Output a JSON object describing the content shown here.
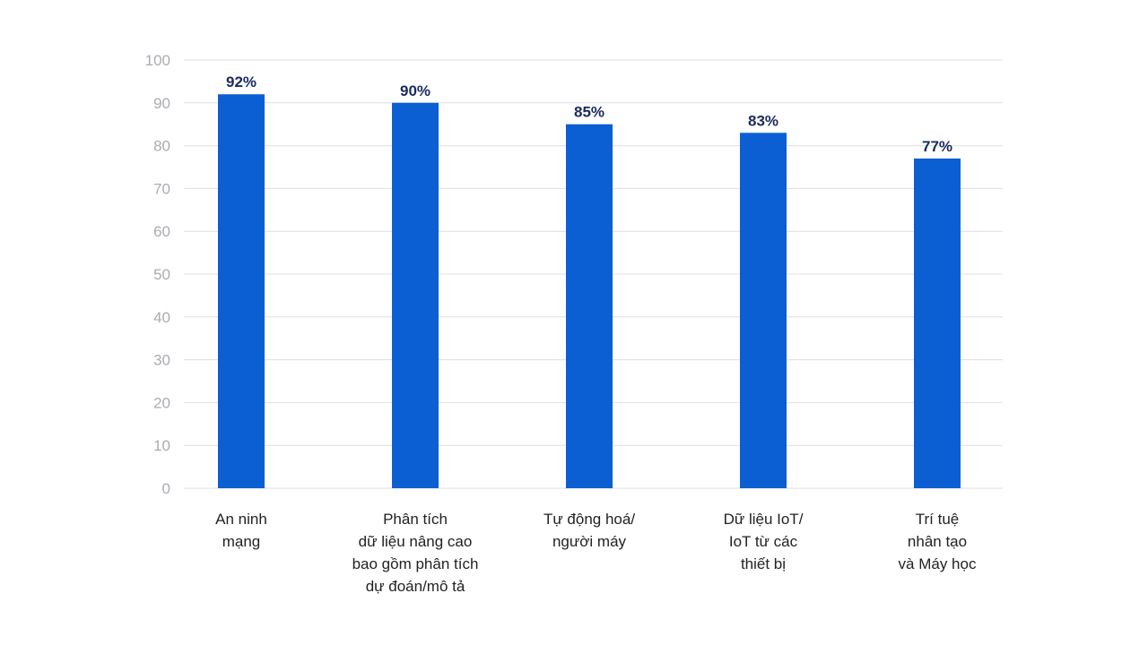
{
  "chart_data": {
    "type": "bar",
    "categories": [
      [
        "An ninh",
        "mạng"
      ],
      [
        "Phân tích",
        "dữ liệu nâng cao",
        "bao gồm phân tích",
        "dự đoán/mô tả"
      ],
      [
        "Tự động hoá/",
        "người máy"
      ],
      [
        "Dữ liệu IoT/",
        "IoT từ các",
        "thiết bị"
      ],
      [
        "Trí tuệ",
        "nhân tạo",
        "và Máy học"
      ]
    ],
    "values": [
      92,
      90,
      85,
      83,
      77
    ],
    "data_labels": [
      "92%",
      "90%",
      "85%",
      "83%",
      "77%"
    ],
    "ylim": [
      0,
      100
    ],
    "yticks": [
      0,
      10,
      20,
      30,
      40,
      50,
      60,
      70,
      80,
      90,
      100
    ],
    "grid": true,
    "bar_color": "#0b5fd3",
    "label_color": "#1b2a5e"
  }
}
